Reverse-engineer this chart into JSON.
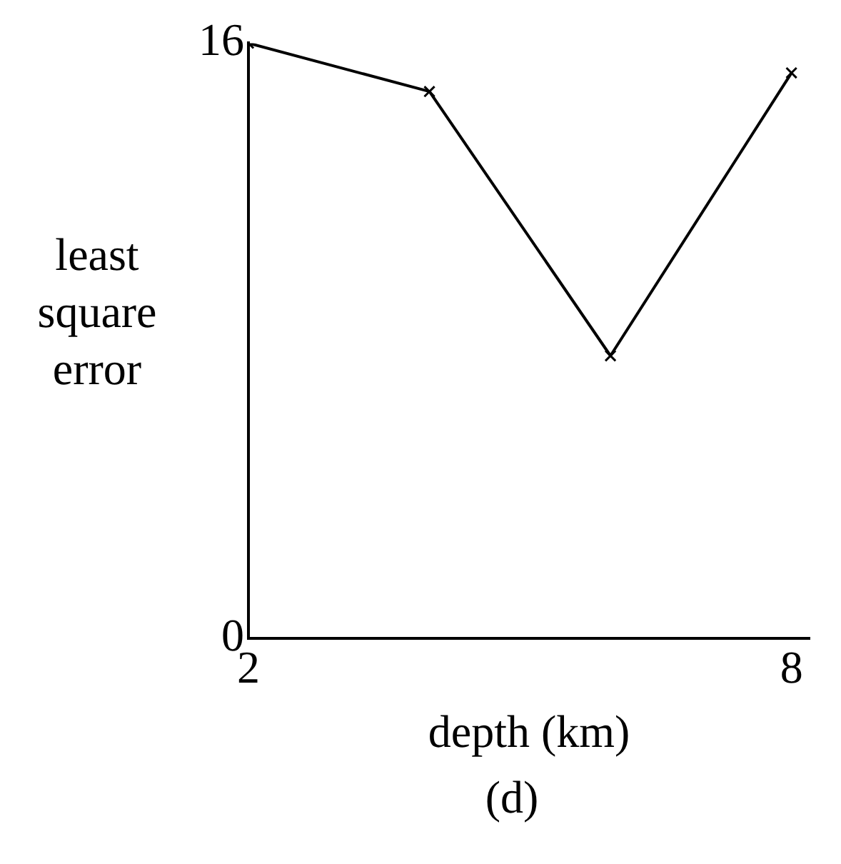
{
  "chart_data": {
    "type": "line",
    "xlabel": "depth (km)",
    "ylabel": "least square error",
    "annotations": [
      "(d)"
    ],
    "x": [
      2,
      4,
      6,
      8
    ],
    "series": [
      {
        "color": "#000000",
        "values": [
          16,
          14.7,
          7.6,
          15.2
        ]
      }
    ],
    "xlim": [
      2,
      8.2
    ],
    "xticks": [
      2,
      8
    ],
    "ylim": [
      0,
      16
    ],
    "yticks": [
      0,
      16
    ],
    "grid": false,
    "legend": false,
    "marker": "cross",
    "line_style": "solid"
  }
}
